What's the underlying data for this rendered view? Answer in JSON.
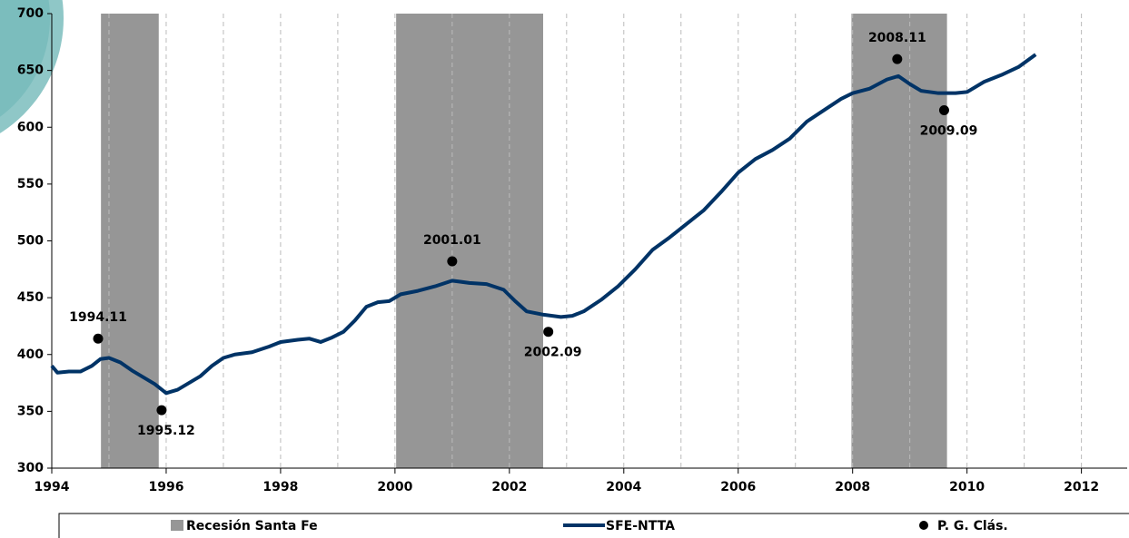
{
  "chart_data": {
    "type": "line",
    "xlim": [
      1994,
      2012.8
    ],
    "xticks": [
      1994,
      1996,
      1998,
      2000,
      2002,
      2004,
      2006,
      2008,
      2010,
      2012
    ],
    "x_minor_ticks": [
      1995,
      1997,
      1999,
      2001,
      2003,
      2005,
      2007,
      2009,
      2011
    ],
    "ylim": [
      300,
      700
    ],
    "yticks": [
      300,
      350,
      400,
      450,
      500,
      550,
      600,
      650,
      700
    ],
    "recessions": {
      "name": "Recesión Santa Fe",
      "color": "#969696",
      "ranges": [
        [
          1994.86,
          1995.87
        ],
        [
          2000.02,
          2002.59
        ],
        [
          2007.98,
          2009.65
        ]
      ]
    },
    "series": [
      {
        "name": "SFE-NTTA",
        "color": "#003366",
        "x": [
          1994.0,
          1994.1,
          1994.3,
          1994.5,
          1994.7,
          1994.85,
          1995.0,
          1995.2,
          1995.4,
          1995.6,
          1995.8,
          1995.9,
          1996.0,
          1996.2,
          1996.4,
          1996.6,
          1996.8,
          1997.0,
          1997.2,
          1997.5,
          1997.8,
          1998.0,
          1998.3,
          1998.5,
          1998.7,
          1998.9,
          1999.1,
          1999.3,
          1999.5,
          1999.7,
          1999.9,
          2000.1,
          2000.4,
          2000.7,
          2001.0,
          2001.3,
          2001.6,
          2001.9,
          2002.1,
          2002.3,
          2002.6,
          2002.9,
          2003.1,
          2003.3,
          2003.6,
          2003.9,
          2004.2,
          2004.5,
          2004.8,
          2005.1,
          2005.4,
          2005.7,
          2006.0,
          2006.3,
          2006.6,
          2006.9,
          2007.2,
          2007.5,
          2007.8,
          2008.0,
          2008.3,
          2008.6,
          2008.8,
          2009.0,
          2009.2,
          2009.5,
          2009.8,
          2010.0,
          2010.3,
          2010.6,
          2010.9,
          2011.2
        ],
        "values": [
          390,
          384,
          385,
          385,
          390,
          396,
          397,
          393,
          386,
          380,
          374,
          370,
          366,
          369,
          375,
          381,
          390,
          397,
          400,
          402,
          407,
          411,
          413,
          414,
          411,
          415,
          420,
          430,
          442,
          446,
          447,
          453,
          456,
          460,
          465,
          463,
          462,
          457,
          447,
          438,
          435,
          433,
          434,
          438,
          448,
          460,
          475,
          492,
          503,
          515,
          527,
          543,
          560,
          572,
          580,
          590,
          605,
          615,
          625,
          630,
          634,
          642,
          645,
          638,
          632,
          630,
          630,
          631,
          640,
          646,
          653,
          664
        ]
      }
    ],
    "turning_points": {
      "name": "P. G. Clás.",
      "color": "#000000",
      "x": [
        1994.81,
        1995.92,
        2001.0,
        2002.68,
        2008.78,
        2009.6
      ],
      "values": [
        414,
        351,
        482,
        420,
        660,
        615
      ],
      "labels": [
        "1994.11",
        "1995.12",
        "2001.01",
        "2002.09",
        "2008.11",
        "2009.09"
      ]
    }
  }
}
